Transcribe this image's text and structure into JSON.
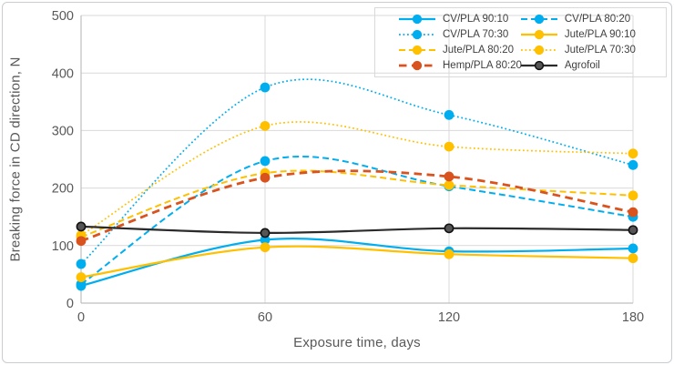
{
  "figure": {
    "background": "#ffffff",
    "border_color": "#c9ccd1"
  },
  "colors": {
    "gridline": "#d9d9d9",
    "axis_line": "#bfbfbf",
    "tick_text": "#595959",
    "axis_title_text": "#595959",
    "legend_text": "#3f3f3f",
    "legend_border": "#d9d9d9",
    "cyan_accent": "#00aeef",
    "yellow_accent": "#ffc000",
    "red_accent": "#d9531e",
    "black_accent": "#2b2b2b"
  },
  "chart_data": {
    "type": "line",
    "title": "",
    "xlabel": "Exposure time, days",
    "ylabel": "Breaking force in CD direction, N",
    "x": [
      0,
      60,
      120,
      180
    ],
    "xticks": [
      0,
      60,
      120,
      180
    ],
    "yticks": [
      0,
      100,
      200,
      300,
      400,
      500
    ],
    "xlim": [
      0,
      180
    ],
    "ylim": [
      0,
      500
    ],
    "grid": "horizontal + vertical light gray gridlines, plot border on right/top",
    "line_shape": "smoothed (spline)",
    "legend_position": "top-right overlay, 2 columns, transparent fill, light gray border",
    "legend_order_note": "row-major, same order as series array",
    "series": [
      {
        "name": "CV/PLA 90:10",
        "color": "#00aeef",
        "line_style": "solid",
        "width": 2.2,
        "values": [
          30,
          110,
          90,
          95
        ]
      },
      {
        "name": "CV/PLA 80:20",
        "color": "#00aeef",
        "line_style": "dashed",
        "width": 2.0,
        "values": [
          33,
          247,
          203,
          150
        ]
      },
      {
        "name": "CV/PLA 70:30",
        "color": "#00aeef",
        "line_style": "dotted",
        "width": 1.7,
        "values": [
          68,
          375,
          327,
          240
        ]
      },
      {
        "name": "Jute/PLA 90:10",
        "color": "#ffc000",
        "line_style": "solid",
        "width": 2.2,
        "values": [
          45,
          97,
          85,
          78
        ]
      },
      {
        "name": "Jute/PLA 80:20",
        "color": "#ffc000",
        "line_style": "dashed",
        "width": 2.0,
        "values": [
          115,
          226,
          205,
          187
        ]
      },
      {
        "name": "Jute/PLA 70:30",
        "color": "#ffc000",
        "line_style": "dotted",
        "width": 1.7,
        "values": [
          118,
          308,
          272,
          260
        ]
      },
      {
        "name": "Hemp/PLA 80:20",
        "color": "#d9531e",
        "line_style": "long-dash",
        "width": 2.8,
        "values": [
          108,
          218,
          220,
          158
        ]
      },
      {
        "name": "Agrofoil",
        "color": "#2b2b2b",
        "line_style": "solid",
        "width": 2.2,
        "marker_fill": "#555555",
        "marker_stroke": "#111111",
        "values": [
          133,
          122,
          130,
          127
        ]
      }
    ]
  }
}
